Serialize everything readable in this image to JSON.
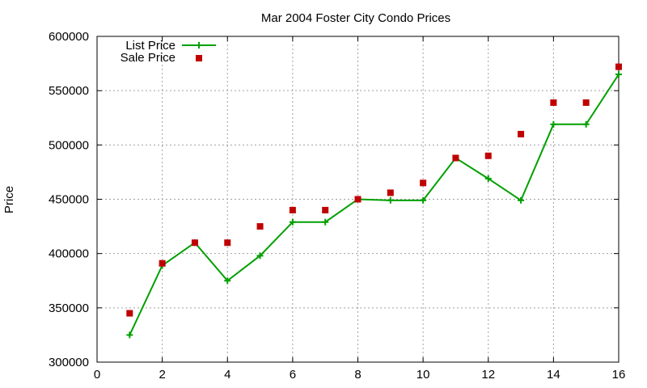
{
  "chart_data": {
    "type": "line",
    "title": "Mar 2004 Foster City Condo Prices",
    "xlabel": "",
    "ylabel": "Price",
    "xlim": [
      0,
      16
    ],
    "ylim": [
      300000,
      600000
    ],
    "xticks": [
      0,
      2,
      4,
      6,
      8,
      10,
      12,
      14,
      16
    ],
    "yticks": [
      300000,
      350000,
      400000,
      450000,
      500000,
      550000,
      600000
    ],
    "grid": true,
    "legend_position": "top-left",
    "series": [
      {
        "name": "List Price",
        "style": "linespoints",
        "marker": "plus",
        "color": "#00a000",
        "x": [
          1,
          2,
          3,
          4,
          5,
          6,
          7,
          8,
          9,
          10,
          11,
          12,
          13,
          14,
          15,
          16
        ],
        "y": [
          325000,
          389000,
          410000,
          375000,
          398000,
          429000,
          429000,
          450000,
          449000,
          449000,
          488000,
          469000,
          449000,
          519000,
          519000,
          565000
        ]
      },
      {
        "name": "Sale Price",
        "style": "points",
        "marker": "square",
        "color": "#c00000",
        "x": [
          1,
          2,
          3,
          4,
          5,
          6,
          7,
          8,
          9,
          10,
          11,
          12,
          13,
          14,
          15,
          16
        ],
        "y": [
          345000,
          391000,
          410000,
          410000,
          425000,
          440000,
          440000,
          450000,
          456000,
          465000,
          488000,
          490000,
          510000,
          539000,
          539000,
          572000
        ]
      }
    ]
  }
}
